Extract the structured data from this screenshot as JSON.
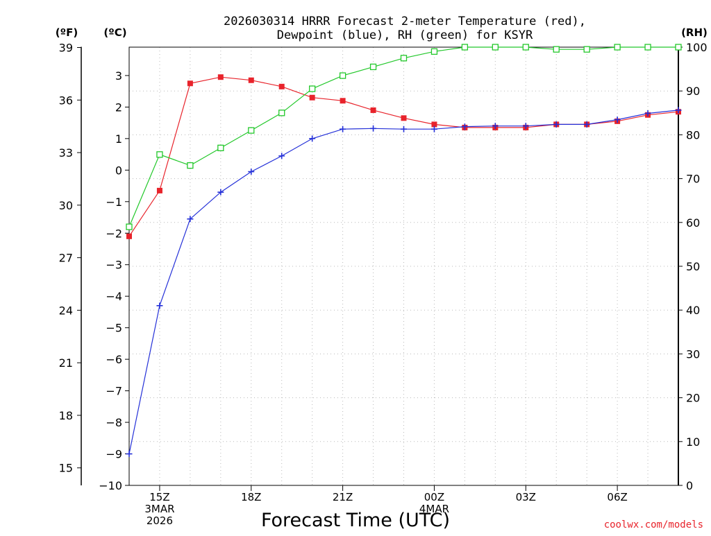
{
  "chart_data": {
    "type": "line",
    "title_line1": "2026030314 HRRR Forecast 2-meter Temperature (red),",
    "title_line2": "Dewpoint (blue), RH (green) for KSYR",
    "xlabel": "Forecast Time (UTC)",
    "y_unit_f": "(ºF)",
    "y_unit_c": "(ºC)",
    "y_unit_rh": "(RH)",
    "watermark": "coolwx.com/models",
    "hours": [
      14,
      15,
      16,
      17,
      18,
      19,
      20,
      21,
      22,
      23,
      24,
      25,
      26,
      27,
      28,
      29,
      30,
      31,
      32
    ],
    "x_ticks": [
      {
        "hour": 15,
        "lines": [
          "15Z",
          "3MAR",
          "2026"
        ]
      },
      {
        "hour": 18,
        "lines": [
          "18Z"
        ]
      },
      {
        "hour": 21,
        "lines": [
          "21Z"
        ]
      },
      {
        "hour": 24,
        "lines": [
          "00Z",
          "4MAR"
        ]
      },
      {
        "hour": 27,
        "lines": [
          "03Z"
        ]
      },
      {
        "hour": 30,
        "lines": [
          "06Z"
        ]
      }
    ],
    "y_left_c": {
      "min": -10,
      "max": 3.9,
      "ticks": [
        -10,
        -9,
        -8,
        -7,
        -6,
        -5,
        -4,
        -3,
        -2,
        -1,
        0,
        1,
        2,
        3
      ],
      "tick_labels": [
        "−10",
        "−9",
        "−8",
        "−7",
        "−6",
        "−5",
        "−4",
        "−3",
        "−2",
        "−1",
        "0",
        "1",
        "2",
        "3"
      ]
    },
    "y_left_f": {
      "ticks": [
        15,
        18,
        21,
        24,
        27,
        30,
        33,
        36,
        39
      ],
      "tick_labels": [
        "15",
        "18",
        "21",
        "24",
        "27",
        "30",
        "33",
        "36",
        "39"
      ]
    },
    "y_right_rh": {
      "min": 0,
      "max": 100,
      "ticks": [
        0,
        10,
        20,
        30,
        40,
        50,
        60,
        70,
        80,
        90,
        100
      ],
      "tick_labels": [
        "0",
        "10",
        "20",
        "30",
        "40",
        "50",
        "60",
        "70",
        "80",
        "90",
        "100"
      ]
    },
    "series": [
      {
        "name": "Temperature",
        "color": "#e8232b",
        "unit": "C",
        "marker": "filled-square",
        "values": [
          -2.1,
          -0.65,
          2.75,
          2.95,
          2.85,
          2.65,
          2.3,
          2.2,
          1.9,
          1.65,
          1.45,
          1.35,
          1.35,
          1.35,
          1.45,
          1.45,
          1.55,
          1.75,
          1.85
        ]
      },
      {
        "name": "Dewpoint",
        "color": "#2430d8",
        "unit": "C",
        "marker": "plus",
        "values": [
          -9.0,
          -4.3,
          -1.55,
          -0.7,
          -0.05,
          0.45,
          1.0,
          1.3,
          1.32,
          1.3,
          1.3,
          1.38,
          1.4,
          1.4,
          1.45,
          1.45,
          1.6,
          1.8,
          1.9
        ]
      },
      {
        "name": "RH",
        "color": "#22c82a",
        "unit": "%",
        "marker": "open-square",
        "values": [
          59,
          75.5,
          73,
          77,
          81,
          85,
          90.5,
          93.5,
          95.5,
          97.5,
          99,
          100,
          100,
          100,
          99.5,
          99.5,
          100,
          100,
          100
        ]
      }
    ]
  }
}
